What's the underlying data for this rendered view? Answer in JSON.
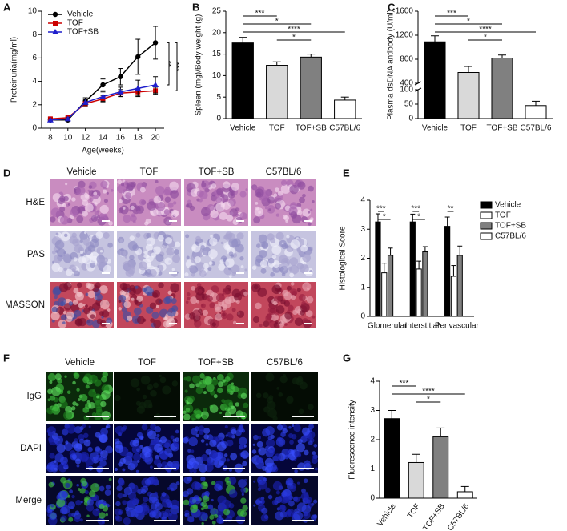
{
  "chart_data": [
    {
      "panel": "A",
      "type": "line",
      "ylabel": "Proteinuria(mg/ml)",
      "xlabel": "Age(weeks)",
      "x": [
        8,
        10,
        12,
        14,
        16,
        18,
        20
      ],
      "xlim": [
        7,
        21
      ],
      "xticks": [
        8,
        10,
        12,
        14,
        16,
        18,
        20
      ],
      "ylim": [
        0,
        10
      ],
      "yticks": [
        0,
        2,
        4,
        6,
        8,
        10
      ],
      "legend": "upper left",
      "series": [
        {
          "name": "Vehicle",
          "color": "#000000",
          "marker": "circle",
          "values": [
            0.7,
            0.7,
            2.3,
            3.7,
            4.4,
            6.1,
            7.3
          ],
          "errors": [
            0.1,
            0.1,
            0.3,
            0.5,
            0.7,
            1.5,
            1.4
          ]
        },
        {
          "name": "TOF",
          "color": "#cc0000",
          "marker": "square",
          "values": [
            0.8,
            0.9,
            2.1,
            2.5,
            3.0,
            3.1,
            3.2
          ],
          "errors": [
            0.1,
            0.1,
            0.2,
            0.3,
            0.3,
            0.3,
            0.3
          ]
        },
        {
          "name": "TOF+SB",
          "color": "#1f1fcc",
          "marker": "triangle",
          "values": [
            0.7,
            0.8,
            2.2,
            2.7,
            3.1,
            3.4,
            3.7
          ],
          "errors": [
            0.1,
            0.1,
            0.2,
            0.4,
            0.4,
            0.7,
            0.7
          ]
        }
      ],
      "annotations": [
        {
          "label": "**",
          "between": [
            "Vehicle",
            "TOF+SB"
          ]
        },
        {
          "label": "***",
          "between": [
            "Vehicle",
            "TOF"
          ]
        }
      ]
    },
    {
      "panel": "B",
      "type": "bar",
      "ylabel": "Spleen (mg)/Body weight (g)",
      "categories": [
        "Vehicle",
        "TOF",
        "TOF+SB",
        "C57BL/6"
      ],
      "values": [
        17.6,
        12.4,
        14.3,
        4.3
      ],
      "errors": [
        1.3,
        0.8,
        0.7,
        0.7
      ],
      "colors": [
        "#000000",
        "#d9d9d9",
        "#808080",
        "#ffffff"
      ],
      "ylim": [
        0,
        25
      ],
      "yticks": [
        0,
        5,
        10,
        15,
        20,
        25
      ],
      "annotations": [
        {
          "label": "***",
          "between": [
            "Vehicle",
            "TOF"
          ]
        },
        {
          "label": "*",
          "between": [
            "Vehicle",
            "TOF+SB"
          ]
        },
        {
          "label": "****",
          "between": [
            "Vehicle",
            "C57BL/6"
          ]
        },
        {
          "label": "*",
          "between": [
            "TOF",
            "TOF+SB"
          ]
        }
      ]
    },
    {
      "panel": "C",
      "type": "bar",
      "ylabel": "Plasma dsDNA antibody (U/ml)",
      "categories": [
        "Vehicle",
        "TOF",
        "TOF+SB",
        "C57BL/6"
      ],
      "values": [
        1090,
        580,
        820,
        45
      ],
      "errors": [
        100,
        100,
        50,
        15
      ],
      "colors": [
        "#000000",
        "#d9d9d9",
        "#808080",
        "#ffffff"
      ],
      "ylim": [
        0,
        1600
      ],
      "axis_break": [
        100,
        400
      ],
      "yticks": [
        0,
        50,
        100,
        400,
        800,
        1200,
        1600
      ],
      "annotations": [
        {
          "label": "***",
          "between": [
            "Vehicle",
            "TOF"
          ]
        },
        {
          "label": "*",
          "between": [
            "Vehicle",
            "TOF+SB"
          ]
        },
        {
          "label": "****",
          "between": [
            "Vehicle",
            "C57BL/6"
          ]
        },
        {
          "label": "*",
          "between": [
            "TOF",
            "TOF+SB"
          ]
        }
      ]
    },
    {
      "panel": "E",
      "type": "grouped_bar",
      "ylabel": "Histological Score",
      "categories": [
        "Glomerular",
        "Interstitial",
        "Perivascular"
      ],
      "ylim": [
        0,
        4
      ],
      "yticks": [
        0,
        1,
        2,
        3,
        4
      ],
      "legend": "right",
      "series": [
        {
          "name": "Vehicle",
          "color": "#000000",
          "values": [
            3.25,
            3.25,
            3.1
          ],
          "errors": [
            0.28,
            0.27,
            0.32
          ]
        },
        {
          "name": "TOF",
          "color": "#ffffff",
          "values": [
            1.5,
            1.63,
            1.38
          ],
          "errors": [
            0.33,
            0.27,
            0.37
          ]
        },
        {
          "name": "TOF+SB",
          "color": "#808080",
          "values": [
            2.1,
            2.22,
            2.1
          ],
          "errors": [
            0.25,
            0.18,
            0.32
          ]
        },
        {
          "name": "C57BL/6",
          "color": "#ffffff",
          "values": [
            0,
            0,
            0
          ],
          "errors": [
            0,
            0,
            0
          ]
        }
      ],
      "annotations": [
        {
          "label": "***",
          "category": "Glomerular",
          "between": [
            "Vehicle",
            "TOF"
          ]
        },
        {
          "label": "*",
          "category": "Glomerular",
          "between": [
            "Vehicle",
            "TOF+SB"
          ]
        },
        {
          "label": "***",
          "category": "Interstitial",
          "between": [
            "Vehicle",
            "TOF"
          ]
        },
        {
          "label": "*",
          "category": "Interstitial",
          "between": [
            "Vehicle",
            "TOF+SB"
          ]
        },
        {
          "label": "**",
          "category": "Perivascular",
          "between": [
            "Vehicle",
            "TOF"
          ]
        }
      ]
    },
    {
      "panel": "G",
      "type": "bar",
      "ylabel": "Fluorescence intensity",
      "rotate_labels": true,
      "categories": [
        "Vehicle",
        "TOF",
        "TOF+SB",
        "C57BL/6"
      ],
      "values": [
        2.72,
        1.22,
        2.1,
        0.22
      ],
      "errors": [
        0.28,
        0.28,
        0.3,
        0.18
      ],
      "colors": [
        "#000000",
        "#d9d9d9",
        "#808080",
        "#ffffff"
      ],
      "ylim": [
        0,
        4
      ],
      "yticks": [
        0,
        1,
        2,
        3,
        4
      ],
      "annotations": [
        {
          "label": "***",
          "between": [
            "Vehicle",
            "TOF"
          ]
        },
        {
          "label": "****",
          "between": [
            "Vehicle",
            "C57BL/6"
          ]
        },
        {
          "label": "*",
          "between": [
            "TOF",
            "TOF+SB"
          ]
        }
      ]
    }
  ],
  "image_panels": [
    {
      "panel": "D",
      "columns": [
        "Vehicle",
        "TOF",
        "TOF+SB",
        "C57BL/6"
      ],
      "rows": [
        "H&E",
        "PAS",
        "MASSON"
      ]
    },
    {
      "panel": "F",
      "columns": [
        "Vehicle",
        "TOF",
        "TOF+SB",
        "C57BL/6"
      ],
      "rows": [
        "IgG",
        "DAPI",
        "Merge"
      ]
    }
  ]
}
